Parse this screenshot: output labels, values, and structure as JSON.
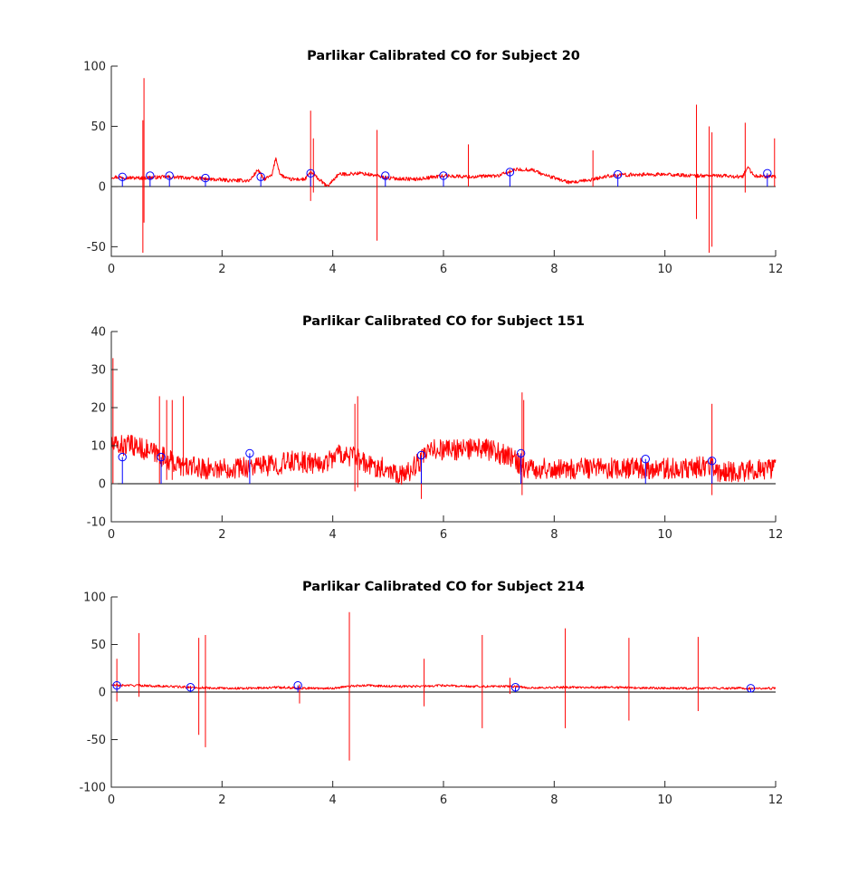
{
  "chart_data": [
    {
      "type": "line",
      "title": "Parlikar Calibrated CO for Subject 20",
      "xlabel": "",
      "ylabel": "",
      "xlim": [
        0,
        12
      ],
      "ylim": [
        -58,
        100
      ],
      "xticks": [
        0,
        2,
        4,
        6,
        8,
        10,
        12
      ],
      "yticks": [
        -50,
        0,
        50,
        100
      ],
      "grid": false,
      "colors": {
        "line": "#ff0000",
        "stem": "#0000ff"
      },
      "series": [
        {
          "name": "",
          "style": "line",
          "baseline": [
            [
              0,
              8
            ],
            [
              0.5,
              7
            ],
            [
              1.0,
              8
            ],
            [
              1.5,
              7
            ],
            [
              1.8,
              6
            ],
            [
              2.2,
              5
            ],
            [
              2.5,
              5
            ],
            [
              2.65,
              14
            ],
            [
              2.75,
              6
            ],
            [
              2.9,
              9
            ],
            [
              2.97,
              24
            ],
            [
              3.05,
              10
            ],
            [
              3.2,
              6
            ],
            [
              3.5,
              6
            ],
            [
              3.6,
              12
            ],
            [
              3.75,
              6
            ],
            [
              3.9,
              0
            ],
            [
              4.1,
              10
            ],
            [
              4.5,
              11
            ],
            [
              4.8,
              9
            ],
            [
              5.0,
              7
            ],
            [
              5.5,
              6
            ],
            [
              6.0,
              9
            ],
            [
              6.5,
              8
            ],
            [
              7.0,
              9
            ],
            [
              7.3,
              14
            ],
            [
              7.6,
              14
            ],
            [
              7.8,
              10
            ],
            [
              8.3,
              3
            ],
            [
              8.6,
              5
            ],
            [
              9.0,
              9
            ],
            [
              9.5,
              10
            ],
            [
              10.0,
              10
            ],
            [
              10.5,
              9
            ],
            [
              11.0,
              9
            ],
            [
              11.4,
              8
            ],
            [
              11.5,
              16
            ],
            [
              11.6,
              9
            ],
            [
              12.0,
              8
            ]
          ],
          "spikes": [
            [
              0.57,
              55,
              -55
            ],
            [
              0.59,
              90,
              -30
            ],
            [
              3.6,
              63,
              -12
            ],
            [
              3.65,
              40,
              -5
            ],
            [
              4.8,
              47,
              -45
            ],
            [
              6.45,
              35,
              0
            ],
            [
              8.7,
              30,
              0
            ],
            [
              10.57,
              68,
              -27
            ],
            [
              10.8,
              50,
              -55
            ],
            [
              10.85,
              45,
              -50
            ],
            [
              11.45,
              53,
              -5
            ],
            [
              11.98,
              40,
              0
            ]
          ],
          "noise": 1.5
        },
        {
          "name": "",
          "style": "stem",
          "points": [
            [
              0.2,
              8
            ],
            [
              0.7,
              9
            ],
            [
              1.05,
              9
            ],
            [
              1.7,
              7
            ],
            [
              2.7,
              8
            ],
            [
              3.6,
              11
            ],
            [
              4.95,
              9
            ],
            [
              6.0,
              9
            ],
            [
              7.2,
              12
            ],
            [
              9.15,
              10
            ],
            [
              11.85,
              11
            ]
          ]
        }
      ]
    },
    {
      "type": "line",
      "title": "Parlikar Calibrated CO for Subject 151",
      "xlabel": "",
      "ylabel": "",
      "xlim": [
        0,
        12
      ],
      "ylim": [
        -10,
        40
      ],
      "xticks": [
        0,
        2,
        4,
        6,
        8,
        10,
        12
      ],
      "yticks": [
        -10,
        0,
        10,
        20,
        30,
        40
      ],
      "grid": false,
      "colors": {
        "line": "#ff0000",
        "stem": "#0000ff"
      },
      "series": [
        {
          "name": "",
          "style": "line",
          "baseline": [
            [
              0,
              10
            ],
            [
              0.4,
              10
            ],
            [
              0.8,
              8
            ],
            [
              1.2,
              5
            ],
            [
              1.6,
              4
            ],
            [
              2.0,
              4
            ],
            [
              2.5,
              4.5
            ],
            [
              3.0,
              5
            ],
            [
              3.3,
              6
            ],
            [
              3.8,
              5
            ],
            [
              4.1,
              8
            ],
            [
              4.4,
              7
            ],
            [
              4.6,
              5
            ],
            [
              5.0,
              4
            ],
            [
              5.3,
              2
            ],
            [
              5.5,
              5
            ],
            [
              5.8,
              9
            ],
            [
              6.2,
              9
            ],
            [
              6.8,
              9
            ],
            [
              7.2,
              7
            ],
            [
              7.5,
              4
            ],
            [
              8.5,
              4
            ],
            [
              9.5,
              4
            ],
            [
              10.0,
              4
            ],
            [
              10.5,
              4
            ],
            [
              10.8,
              5
            ],
            [
              11.0,
              3
            ],
            [
              12.0,
              4
            ]
          ],
          "spikes": [
            [
              0.03,
              33,
              0
            ],
            [
              0.87,
              23,
              0
            ],
            [
              1.0,
              22,
              1
            ],
            [
              1.1,
              22,
              1
            ],
            [
              1.3,
              23,
              2
            ],
            [
              4.4,
              21,
              -2
            ],
            [
              4.45,
              23,
              -1
            ],
            [
              5.6,
              8,
              -4
            ],
            [
              7.42,
              24,
              -3
            ],
            [
              7.45,
              22,
              2
            ],
            [
              10.85,
              21,
              -3
            ]
          ],
          "noise": 2.8
        },
        {
          "name": "",
          "style": "stem",
          "points": [
            [
              0.2,
              7
            ],
            [
              0.9,
              7
            ],
            [
              2.5,
              8
            ],
            [
              5.6,
              7.5
            ],
            [
              7.4,
              8
            ],
            [
              9.65,
              6.5
            ],
            [
              10.85,
              6
            ]
          ]
        }
      ]
    },
    {
      "type": "line",
      "title": "Parlikar Calibrated CO for Subject 214",
      "xlabel": "",
      "ylabel": "",
      "xlim": [
        0,
        12
      ],
      "ylim": [
        -100,
        100
      ],
      "xticks": [
        0,
        2,
        4,
        6,
        8,
        10,
        12
      ],
      "yticks": [
        -100,
        -50,
        0,
        50,
        100
      ],
      "grid": false,
      "colors": {
        "line": "#ff0000",
        "stem": "#0000ff"
      },
      "series": [
        {
          "name": "",
          "style": "line",
          "baseline": [
            [
              0,
              7
            ],
            [
              0.5,
              7
            ],
            [
              1.0,
              6
            ],
            [
              1.4,
              5
            ],
            [
              2.0,
              4
            ],
            [
              2.5,
              4
            ],
            [
              3.0,
              5
            ],
            [
              3.5,
              4
            ],
            [
              4.0,
              4
            ],
            [
              4.3,
              6
            ],
            [
              4.6,
              7
            ],
            [
              5.0,
              6
            ],
            [
              5.6,
              6
            ],
            [
              6.0,
              7
            ],
            [
              6.5,
              6
            ],
            [
              7.0,
              6
            ],
            [
              7.3,
              6
            ],
            [
              7.6,
              4
            ],
            [
              8.0,
              5
            ],
            [
              9.0,
              5
            ],
            [
              10.0,
              4
            ],
            [
              11.0,
              4
            ],
            [
              12.0,
              4
            ]
          ],
          "spikes": [
            [
              0.1,
              35,
              -10
            ],
            [
              0.5,
              62,
              -5
            ],
            [
              1.58,
              57,
              -45
            ],
            [
              1.7,
              60,
              -58
            ],
            [
              3.4,
              8,
              -12
            ],
            [
              4.3,
              84,
              -72
            ],
            [
              5.65,
              35,
              -15
            ],
            [
              6.7,
              60,
              -38
            ],
            [
              7.2,
              15,
              -2
            ],
            [
              8.2,
              67,
              -38
            ],
            [
              9.35,
              57,
              -30
            ],
            [
              10.6,
              58,
              -20
            ]
          ],
          "noise": 1.2
        },
        {
          "name": "",
          "style": "stem",
          "points": [
            [
              0.1,
              7
            ],
            [
              1.43,
              5
            ],
            [
              3.37,
              7
            ],
            [
              7.3,
              5
            ],
            [
              11.55,
              4
            ]
          ]
        }
      ]
    }
  ]
}
